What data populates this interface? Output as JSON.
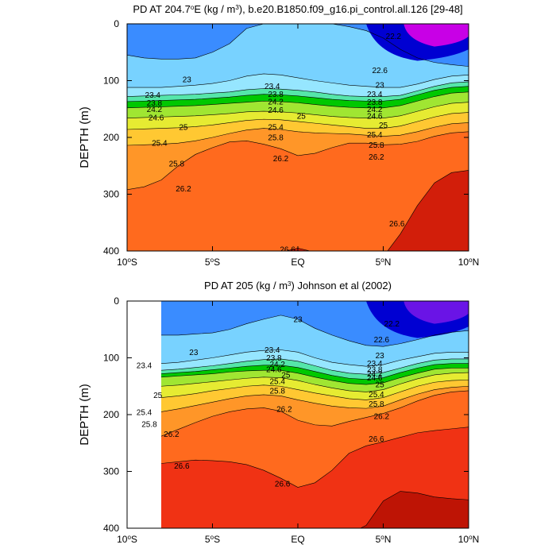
{
  "chart_data": [
    {
      "type": "heatmap",
      "title": "PD AT 204.7°E (kg / m³), b.e20.B1850.f09_g16.pi_control.all.126 [29-48]",
      "title_parts": {
        "pre": "PD AT 204.7",
        "sup1": "o",
        "mid": "E (kg / m",
        "sup2": "3",
        "post": "), b.e20.B1850.f09_g16.pi_control.all.126 [29-48]"
      },
      "xlabel": "",
      "ylabel": "DEPTH (m)",
      "xlim": [
        -10,
        10
      ],
      "ylim": [
        0,
        400
      ],
      "y_inverted": true,
      "x_ticks": [
        {
          "value": -10,
          "num": "10",
          "sup": "o",
          "hemi": "S"
        },
        {
          "value": -5,
          "num": "5",
          "sup": "o",
          "hemi": "S"
        },
        {
          "value": 0,
          "num": "EQ",
          "sup": "",
          "hemi": ""
        },
        {
          "value": 5,
          "num": "5",
          "sup": "o",
          "hemi": "N"
        },
        {
          "value": 10,
          "num": "10",
          "sup": "o",
          "hemi": "N"
        }
      ],
      "y_ticks": [
        "0",
        "100",
        "200",
        "300",
        "400"
      ],
      "y_tick_values": [
        0,
        100,
        200,
        300,
        400
      ],
      "x_start": -10,
      "x": [
        -10,
        -9,
        -8,
        -7,
        -6,
        -5,
        -4,
        -3,
        -2,
        -1,
        0,
        1,
        2,
        3,
        4,
        5,
        6,
        7,
        8,
        9,
        10
      ],
      "isopycnal_depths": [
        {
          "level": 23.0,
          "depths": [
            55,
            60,
            62,
            62,
            60,
            50,
            35,
            8,
            0,
            0,
            0,
            0,
            0,
            5,
            12,
            25,
            45,
            60,
            68,
            72,
            75
          ]
        },
        {
          "level": 23.4,
          "depths": [
            112,
            112,
            112,
            110,
            108,
            105,
            100,
            92,
            88,
            90,
            95,
            100,
            104,
            108,
            110,
            112,
            112,
            106,
            98,
            92,
            90
          ]
        },
        {
          "level": 23.8,
          "depths": [
            128,
            127,
            126,
            125,
            124,
            122,
            120,
            116,
            114,
            115,
            117,
            120,
            124,
            127,
            128,
            128,
            126,
            118,
            110,
            104,
            102
          ]
        },
        {
          "level": 24.2,
          "depths": [
            137,
            136,
            135,
            134,
            133,
            131,
            129,
            126,
            124,
            125,
            127,
            130,
            133,
            135,
            136,
            136,
            133,
            125,
            117,
            112,
            110
          ]
        },
        {
          "level": 24.6,
          "depths": [
            148,
            147,
            146,
            145,
            144,
            142,
            140,
            138,
            136,
            137,
            139,
            142,
            145,
            147,
            148,
            148,
            144,
            136,
            128,
            122,
            120
          ]
        },
        {
          "level": 25.0,
          "depths": [
            166,
            165,
            164,
            163,
            162,
            160,
            158,
            155,
            154,
            155,
            157,
            160,
            163,
            165,
            166,
            166,
            162,
            154,
            146,
            140,
            138
          ]
        },
        {
          "level": 25.4,
          "depths": [
            186,
            185,
            184,
            183,
            181,
            178,
            174,
            170,
            168,
            169,
            172,
            175,
            178,
            181,
            184,
            184,
            180,
            172,
            164,
            158,
            156
          ]
        },
        {
          "level": 25.8,
          "depths": [
            214,
            213,
            212,
            210,
            206,
            200,
            193,
            187,
            184,
            186,
            190,
            192,
            193,
            194,
            196,
            198,
            196,
            190,
            182,
            176,
            174
          ]
        },
        {
          "level": 26.2,
          "depths": [
            292,
            287,
            275,
            250,
            230,
            218,
            208,
            206,
            212,
            220,
            232,
            228,
            218,
            210,
            210,
            213,
            212,
            207,
            198,
            192,
            190
          ]
        },
        {
          "level": 26.6,
          "depths": [
            410,
            410,
            410,
            410,
            410,
            410,
            410,
            410,
            410,
            402,
            395,
            402,
            410,
            410,
            410,
            410,
            370,
            320,
            280,
            262,
            258
          ]
        }
      ],
      "isopycnal_labels": [
        {
          "text": "22.2",
          "x": 5.6,
          "y": 22
        },
        {
          "text": "22.6",
          "x": 4.8,
          "y": 82
        },
        {
          "text": "23",
          "x": -6.5,
          "y": 98
        },
        {
          "text": "23",
          "x": 4.8,
          "y": 108
        },
        {
          "text": "23.4",
          "x": -1.5,
          "y": 110
        },
        {
          "text": "23.4",
          "x": -8.5,
          "y": 125
        },
        {
          "text": "23.4",
          "x": 4.5,
          "y": 124
        },
        {
          "text": "23.8",
          "x": -1.3,
          "y": 124
        },
        {
          "text": "23.8",
          "x": -8.4,
          "y": 139
        },
        {
          "text": "23.8",
          "x": 4.5,
          "y": 138
        },
        {
          "text": "24.2",
          "x": -1.3,
          "y": 137
        },
        {
          "text": "24.2",
          "x": -8.4,
          "y": 150
        },
        {
          "text": "24.2",
          "x": 4.5,
          "y": 150
        },
        {
          "text": "24.6",
          "x": -1.3,
          "y": 152
        },
        {
          "text": "24.6",
          "x": -8.3,
          "y": 165
        },
        {
          "text": "24.6",
          "x": 4.5,
          "y": 162
        },
        {
          "text": "25",
          "x": 0.2,
          "y": 162
        },
        {
          "text": "25",
          "x": -6.7,
          "y": 182
        },
        {
          "text": "25",
          "x": 5.0,
          "y": 178
        },
        {
          "text": "25.4",
          "x": -1.3,
          "y": 182
        },
        {
          "text": "25.4",
          "x": -8.1,
          "y": 210
        },
        {
          "text": "25.4",
          "x": 4.5,
          "y": 195
        },
        {
          "text": "25.8",
          "x": -1.3,
          "y": 200
        },
        {
          "text": "25.8",
          "x": -7.1,
          "y": 246
        },
        {
          "text": "25.8",
          "x": 4.6,
          "y": 213
        },
        {
          "text": "26.2",
          "x": -1.0,
          "y": 237
        },
        {
          "text": "26.2",
          "x": -6.7,
          "y": 290
        },
        {
          "text": "26.2",
          "x": 4.6,
          "y": 234
        },
        {
          "text": "26.6",
          "x": 5.8,
          "y": 352
        },
        {
          "text": "26.6",
          "x": -0.6,
          "y": 397
        }
      ]
    },
    {
      "type": "heatmap",
      "title": "PD AT 205 (kg / m³) Johnson et al (2002)",
      "title_parts": {
        "pre": "PD AT 205 (kg / m",
        "sup1": "",
        "mid": "",
        "sup2": "3",
        "post": ") Johnson et al (2002)"
      },
      "xlabel": "",
      "ylabel": "DEPTH (m)",
      "xlim": [
        -10,
        10
      ],
      "ylim": [
        0,
        400
      ],
      "y_inverted": true,
      "x_ticks": [
        {
          "value": -10,
          "num": "10",
          "sup": "o",
          "hemi": "S"
        },
        {
          "value": -5,
          "num": "5",
          "sup": "o",
          "hemi": "S"
        },
        {
          "value": 0,
          "num": "EQ",
          "sup": "",
          "hemi": ""
        },
        {
          "value": 5,
          "num": "5",
          "sup": "o",
          "hemi": "N"
        },
        {
          "value": 10,
          "num": "10",
          "sup": "o",
          "hemi": "N"
        }
      ],
      "y_ticks": [
        "0",
        "100",
        "200",
        "300",
        "400"
      ],
      "y_tick_values": [
        0,
        100,
        200,
        300,
        400
      ],
      "x_start": -8,
      "x": [
        -8,
        -7,
        -6,
        -5,
        -4,
        -3,
        -2,
        -1,
        0,
        1,
        2,
        3,
        4,
        5,
        6,
        7,
        8,
        9,
        10
      ],
      "isopycnal_depths": [
        {
          "level": 23.0,
          "depths": [
            60,
            60,
            58,
            56,
            50,
            40,
            32,
            25,
            32,
            48,
            60,
            70,
            78,
            80,
            75,
            68,
            60,
            55,
            52
          ]
        },
        {
          "level": 23.4,
          "depths": [
            110,
            108,
            104,
            100,
            95,
            90,
            87,
            86,
            90,
            100,
            108,
            112,
            115,
            112,
            104,
            98,
            92,
            90,
            90
          ]
        },
        {
          "level": 23.8,
          "depths": [
            122,
            120,
            117,
            114,
            110,
            106,
            103,
            102,
            106,
            114,
            122,
            127,
            129,
            126,
            118,
            110,
            104,
            102,
            102
          ]
        },
        {
          "level": 24.2,
          "depths": [
            128,
            126,
            124,
            121,
            118,
            115,
            113,
            113,
            117,
            124,
            131,
            136,
            138,
            135,
            126,
            118,
            112,
            110,
            110
          ]
        },
        {
          "level": 24.6,
          "depths": [
            134,
            132,
            130,
            128,
            125,
            123,
            122,
            122,
            127,
            134,
            140,
            145,
            147,
            144,
            135,
            127,
            120,
            118,
            118
          ]
        },
        {
          "level": 25.0,
          "depths": [
            150,
            148,
            145,
            142,
            139,
            136,
            134,
            135,
            140,
            147,
            153,
            158,
            160,
            156,
            146,
            137,
            130,
            127,
            126
          ]
        },
        {
          "level": 25.4,
          "depths": [
            170,
            167,
            163,
            158,
            154,
            150,
            148,
            150,
            156,
            162,
            167,
            172,
            174,
            170,
            160,
            150,
            143,
            140,
            139
          ]
        },
        {
          "level": 25.8,
          "depths": [
            195,
            190,
            184,
            178,
            172,
            167,
            165,
            167,
            174,
            180,
            185,
            188,
            189,
            185,
            174,
            164,
            156,
            152,
            150
          ]
        },
        {
          "level": 26.2,
          "depths": [
            238,
            226,
            214,
            203,
            195,
            190,
            188,
            194,
            210,
            218,
            220,
            212,
            205,
            198,
            188,
            176,
            166,
            160,
            158
          ]
        },
        {
          "level": 26.6,
          "depths": [
            286,
            283,
            280,
            281,
            283,
            288,
            298,
            312,
            328,
            320,
            298,
            268,
            255,
            248,
            240,
            232,
            228,
            225,
            222
          ]
        },
        {
          "level": 27.0,
          "depths": [
            410,
            410,
            410,
            410,
            410,
            410,
            410,
            410,
            410,
            410,
            410,
            410,
            395,
            352,
            335,
            338,
            345,
            348,
            350
          ]
        }
      ],
      "isopycnal_labels": [
        {
          "text": "23",
          "x": 0.0,
          "y": 32
        },
        {
          "text": "22.2",
          "x": 5.5,
          "y": 40
        },
        {
          "text": "22.6",
          "x": 4.9,
          "y": 68
        },
        {
          "text": "23",
          "x": -6.1,
          "y": 90
        },
        {
          "text": "23",
          "x": 4.8,
          "y": 96
        },
        {
          "text": "23.4",
          "x": -1.5,
          "y": 86
        },
        {
          "text": "23.4",
          "x": -9.0,
          "y": 113
        },
        {
          "text": "23.4",
          "x": 4.5,
          "y": 110
        },
        {
          "text": "23.8",
          "x": -1.4,
          "y": 100
        },
        {
          "text": "23.8",
          "x": 4.5,
          "y": 120
        },
        {
          "text": "24.2",
          "x": -1.2,
          "y": 111
        },
        {
          "text": "24.2",
          "x": 4.5,
          "y": 128
        },
        {
          "text": "24.6",
          "x": -1.4,
          "y": 120
        },
        {
          "text": "24.6",
          "x": 4.5,
          "y": 135
        },
        {
          "text": "25",
          "x": -0.7,
          "y": 130
        },
        {
          "text": "25",
          "x": -8.2,
          "y": 166
        },
        {
          "text": "25",
          "x": 4.8,
          "y": 147
        },
        {
          "text": "25.4",
          "x": -1.2,
          "y": 141
        },
        {
          "text": "25.4",
          "x": -9.0,
          "y": 196
        },
        {
          "text": "25.4",
          "x": 4.6,
          "y": 164
        },
        {
          "text": "25.8",
          "x": -1.2,
          "y": 158
        },
        {
          "text": "25.8",
          "x": -8.7,
          "y": 217
        },
        {
          "text": "25.8",
          "x": 4.6,
          "y": 181
        },
        {
          "text": "26.2",
          "x": -0.8,
          "y": 190
        },
        {
          "text": "26.2",
          "x": -7.4,
          "y": 234
        },
        {
          "text": "26.2",
          "x": 4.9,
          "y": 203
        },
        {
          "text": "26.6",
          "x": 4.6,
          "y": 243
        },
        {
          "text": "26.6",
          "x": -6.8,
          "y": 290
        },
        {
          "text": "26.6",
          "x": -0.9,
          "y": 322
        }
      ]
    }
  ],
  "colors": {
    "background": "#ffffff",
    "palette": [
      "#1e64ff",
      "#3a8cff",
      "#5ab4ff",
      "#78d2ff",
      "#96e6ff",
      "#55e6aa",
      "#00c800",
      "#a0e632",
      "#e6eb32",
      "#ffc832",
      "#ff9628",
      "#ff6a1e",
      "#f03214",
      "#d21e0a",
      "#be1405"
    ],
    "top_right_water": [
      "#0000d2",
      "#6a14e6",
      "#c800e6",
      "#e600e6"
    ]
  }
}
